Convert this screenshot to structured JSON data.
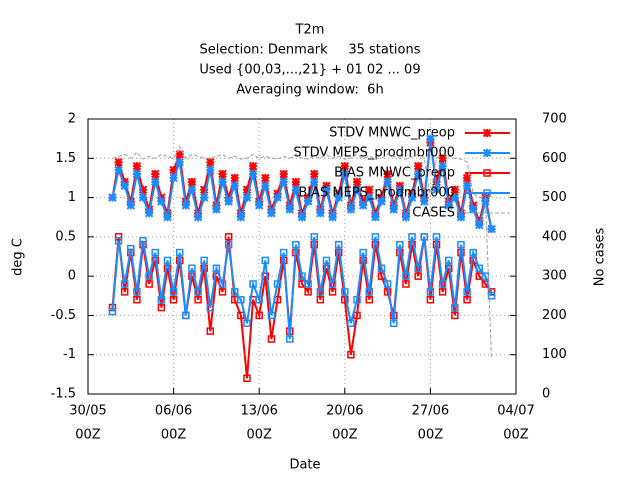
{
  "chart_data": {
    "type": "line",
    "title": [
      "T2m",
      "Selection: Denmark     35 stations",
      "Used {00,03,...,21} + 01 02 ... 09",
      "Averaging window:  6h"
    ],
    "xlabel": "Date",
    "ylabel": "deg C",
    "y2label": "No cases",
    "x": [
      "01/06 00Z",
      "01/06 12Z",
      "02/06 00Z",
      "02/06 12Z",
      "03/06 00Z",
      "03/06 12Z",
      "04/06 00Z",
      "04/06 12Z",
      "05/06 00Z",
      "05/06 12Z",
      "06/06 00Z",
      "06/06 12Z",
      "07/06 00Z",
      "07/06 12Z",
      "08/06 00Z",
      "08/06 12Z",
      "09/06 00Z",
      "09/06 12Z",
      "10/06 00Z",
      "10/06 12Z",
      "11/06 00Z",
      "11/06 12Z",
      "12/06 00Z",
      "12/06 12Z",
      "13/06 00Z",
      "13/06 12Z",
      "14/06 00Z",
      "14/06 12Z",
      "15/06 00Z",
      "15/06 12Z",
      "16/06 00Z",
      "16/06 12Z",
      "17/06 00Z",
      "17/06 12Z",
      "18/06 00Z",
      "18/06 12Z",
      "19/06 00Z",
      "19/06 12Z",
      "20/06 00Z",
      "20/06 12Z",
      "21/06 00Z",
      "21/06 12Z",
      "22/06 00Z",
      "22/06 12Z",
      "23/06 00Z",
      "23/06 12Z",
      "24/06 00Z",
      "24/06 12Z",
      "25/06 00Z",
      "25/06 12Z",
      "26/06 00Z",
      "26/06 12Z",
      "27/06 00Z",
      "27/06 12Z",
      "28/06 00Z",
      "28/06 12Z",
      "29/06 00Z",
      "29/06 12Z",
      "30/06 00Z",
      "30/06 12Z",
      "01/07 00Z",
      "01/07 12Z",
      "02/07 00Z"
    ],
    "xticks": [
      {
        "date": "30/05",
        "time": "00Z"
      },
      {
        "date": "06/06",
        "time": "00Z"
      },
      {
        "date": "13/06",
        "time": "00Z"
      },
      {
        "date": "20/06",
        "time": "00Z"
      },
      {
        "date": "27/06",
        "time": "00Z"
      },
      {
        "date": "04/07",
        "time": "00Z"
      }
    ],
    "ylim": [
      -1.5,
      2
    ],
    "yticks": [
      -1.5,
      -1,
      -0.5,
      0,
      0.5,
      1,
      1.5,
      2
    ],
    "y2lim": [
      0,
      700
    ],
    "y2ticks": [
      0,
      100,
      200,
      300,
      400,
      500,
      600,
      700
    ],
    "grid": true,
    "series": [
      {
        "name": "STDV MNWC_preop",
        "color": "#ff0000",
        "marker": "x",
        "values": [
          1.0,
          1.45,
          1.2,
          0.95,
          1.4,
          1.1,
          0.85,
          1.3,
          1.0,
          0.8,
          1.35,
          1.55,
          0.95,
          1.2,
          0.8,
          1.1,
          1.45,
          0.9,
          1.3,
          1.0,
          1.25,
          0.8,
          1.1,
          1.4,
          0.95,
          1.25,
          0.85,
          1.05,
          1.3,
          0.9,
          1.2,
          0.8,
          1.0,
          1.3,
          0.85,
          1.15,
          0.8,
          1.05,
          1.4,
          0.9,
          1.2,
          0.95,
          1.1,
          0.8,
          1.0,
          1.3,
          0.9,
          1.15,
          0.8,
          1.05,
          1.4,
          1.0,
          1.7,
          1.2,
          1.5,
          0.95,
          1.1,
          0.8,
          1.25,
          0.9,
          0.7,
          1.0,
          0.6
        ]
      },
      {
        "name": "STDV MEPS_prodmbr000",
        "color": "#1a8cff",
        "marker": "x",
        "values": [
          1.0,
          1.35,
          1.15,
          0.9,
          1.3,
          1.0,
          0.8,
          1.2,
          0.95,
          0.75,
          1.25,
          1.45,
          0.9,
          1.1,
          0.75,
          1.0,
          1.35,
          0.85,
          1.2,
          0.95,
          1.15,
          0.75,
          1.0,
          1.3,
          0.9,
          1.15,
          0.8,
          1.0,
          1.2,
          0.85,
          1.1,
          0.75,
          0.95,
          1.2,
          0.8,
          1.1,
          0.75,
          1.0,
          1.3,
          0.85,
          1.1,
          0.9,
          1.0,
          0.75,
          0.95,
          1.2,
          0.85,
          1.1,
          0.75,
          1.0,
          1.3,
          0.95,
          1.75,
          1.1,
          1.4,
          0.9,
          1.0,
          0.75,
          1.15,
          0.85,
          0.65,
          0.95,
          0.6
        ]
      },
      {
        "name": "BIAS MNWC_preop",
        "color": "#ff0000",
        "marker": "square",
        "values": [
          -0.4,
          0.5,
          -0.2,
          0.3,
          -0.3,
          0.4,
          -0.1,
          0.2,
          -0.4,
          0.1,
          -0.3,
          0.2,
          -0.5,
          0.0,
          -0.3,
          0.1,
          -0.7,
          0.0,
          -0.2,
          0.5,
          -0.3,
          -0.5,
          -1.3,
          -0.3,
          -0.5,
          0.0,
          -0.8,
          -0.3,
          0.2,
          -0.7,
          0.3,
          -0.1,
          -0.2,
          0.4,
          -0.3,
          0.1,
          -0.2,
          0.3,
          -0.3,
          -1.0,
          -0.5,
          0.2,
          -0.3,
          0.4,
          0.0,
          -0.2,
          -0.5,
          0.3,
          -0.1,
          0.4,
          0.0,
          0.5,
          -0.3,
          0.4,
          -0.2,
          0.1,
          -0.5,
          0.3,
          -0.3,
          0.2,
          0.0,
          -0.1,
          -0.2
        ]
      },
      {
        "name": "BIAS MEPS_prodmbr000",
        "color": "#1a8cff",
        "marker": "square",
        "values": [
          -0.45,
          0.45,
          -0.1,
          0.35,
          -0.2,
          0.45,
          0.0,
          0.3,
          -0.3,
          0.2,
          -0.2,
          0.3,
          -0.5,
          0.1,
          -0.2,
          0.2,
          -0.4,
          0.1,
          -0.1,
          0.4,
          -0.2,
          -0.3,
          -0.6,
          -0.1,
          -0.3,
          0.2,
          -0.5,
          -0.1,
          0.3,
          -0.8,
          0.4,
          0.0,
          -0.1,
          0.5,
          -0.2,
          0.2,
          -0.1,
          0.4,
          -0.2,
          -0.6,
          -0.3,
          0.3,
          -0.2,
          0.5,
          0.1,
          -0.1,
          -0.6,
          0.4,
          0.0,
          0.5,
          0.1,
          0.5,
          -0.2,
          0.5,
          -0.1,
          0.2,
          -0.4,
          0.4,
          -0.2,
          0.3,
          0.1,
          0.0,
          -0.25
        ]
      },
      {
        "name": "CASES",
        "color": "#a0a0a0",
        "axis": "y2",
        "dashed": true,
        "values": [
          600,
          605,
          610,
          600,
          615,
          598,
          605,
          600,
          610,
          605,
          598,
          630,
          600,
          610,
          605,
          600,
          600,
          605,
          610,
          600,
          605,
          598,
          600,
          610,
          600,
          605,
          600,
          598,
          605,
          600,
          610,
          600,
          598,
          605,
          600,
          610,
          600,
          605,
          598,
          600,
          610,
          600,
          605,
          600,
          600,
          610,
          605,
          600,
          598,
          605,
          610,
          600,
          500,
          600,
          610,
          605,
          600,
          598,
          590,
          510,
          500,
          500,
          90
        ]
      }
    ]
  }
}
